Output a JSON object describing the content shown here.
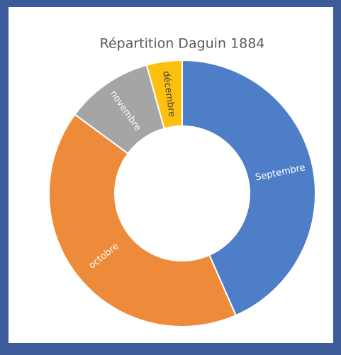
{
  "chart_data": {
    "type": "donut",
    "title": "Répartition Daguin 1884",
    "categories": [
      "Septembre",
      "octobre",
      "novembre",
      "décembre"
    ],
    "values": [
      43.4,
      41.7,
      10.6,
      4.3
    ],
    "colors": [
      "#4e7ec8",
      "#ed8b3a",
      "#a5a5a5",
      "#fdc00f"
    ]
  }
}
